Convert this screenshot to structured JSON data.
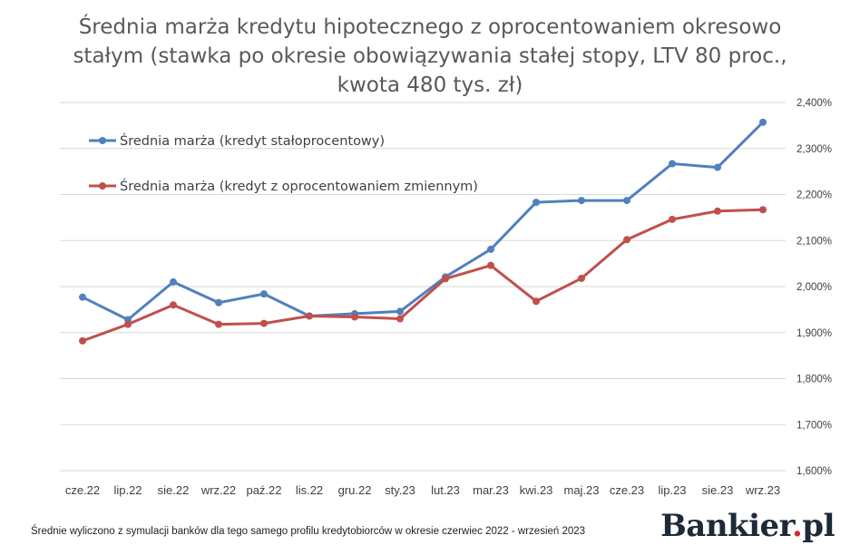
{
  "chart_data": {
    "type": "line",
    "title_lines": [
      "Średnia marża kredytu hipotecznego z oprocentowaniem okresowo",
      "stałym (stawka po okresie obowiązywania stałej stopy, LTV 80 proc.,",
      "kwota 480 tys. zł)"
    ],
    "categories": [
      "cze.22",
      "lip.22",
      "sie.22",
      "wrz.22",
      "paź.22",
      "lis.22",
      "gru.22",
      "sty.23",
      "lut.23",
      "mar.23",
      "kwi.23",
      "maj.23",
      "cze.23",
      "lip.23",
      "sie.23",
      "wrz.23"
    ],
    "series": [
      {
        "name": "Średnia marża (kredyt stałoprocentowy)",
        "color": "#4f81bd",
        "values": [
          1.977,
          1.928,
          2.01,
          1.965,
          1.984,
          1.936,
          1.941,
          1.946,
          2.021,
          2.081,
          2.183,
          2.187,
          2.187,
          2.267,
          2.259,
          2.357
        ]
      },
      {
        "name": "Średnia marża (kredyt z oprocentowaniem zmiennym)",
        "color": "#c0504d",
        "values": [
          1.882,
          1.918,
          1.96,
          1.918,
          1.92,
          1.936,
          1.934,
          1.93,
          2.017,
          2.046,
          1.968,
          2.018,
          2.102,
          2.146,
          2.164,
          2.167
        ]
      }
    ],
    "ylim": [
      1.6,
      2.4
    ],
    "yticks": [
      "1,600%",
      "1,700%",
      "1,800%",
      "1,900%",
      "2,000%",
      "2,100%",
      "2,200%",
      "2,300%",
      "2,400%"
    ],
    "grid": true,
    "legend_position": "top-left",
    "axis_position": "right"
  },
  "footnote": "Średnie wyliczono z symulacji banków dla tego samego profilu kredytobiorców w okresie czerwiec 2022 - wrzesień 2023",
  "brand": {
    "name": "Bankier",
    "dot": ".",
    "tld": "pl"
  },
  "colors": {
    "grid": "#d9d9d9",
    "axis_text": "#404040",
    "legend_text": "#404040"
  }
}
